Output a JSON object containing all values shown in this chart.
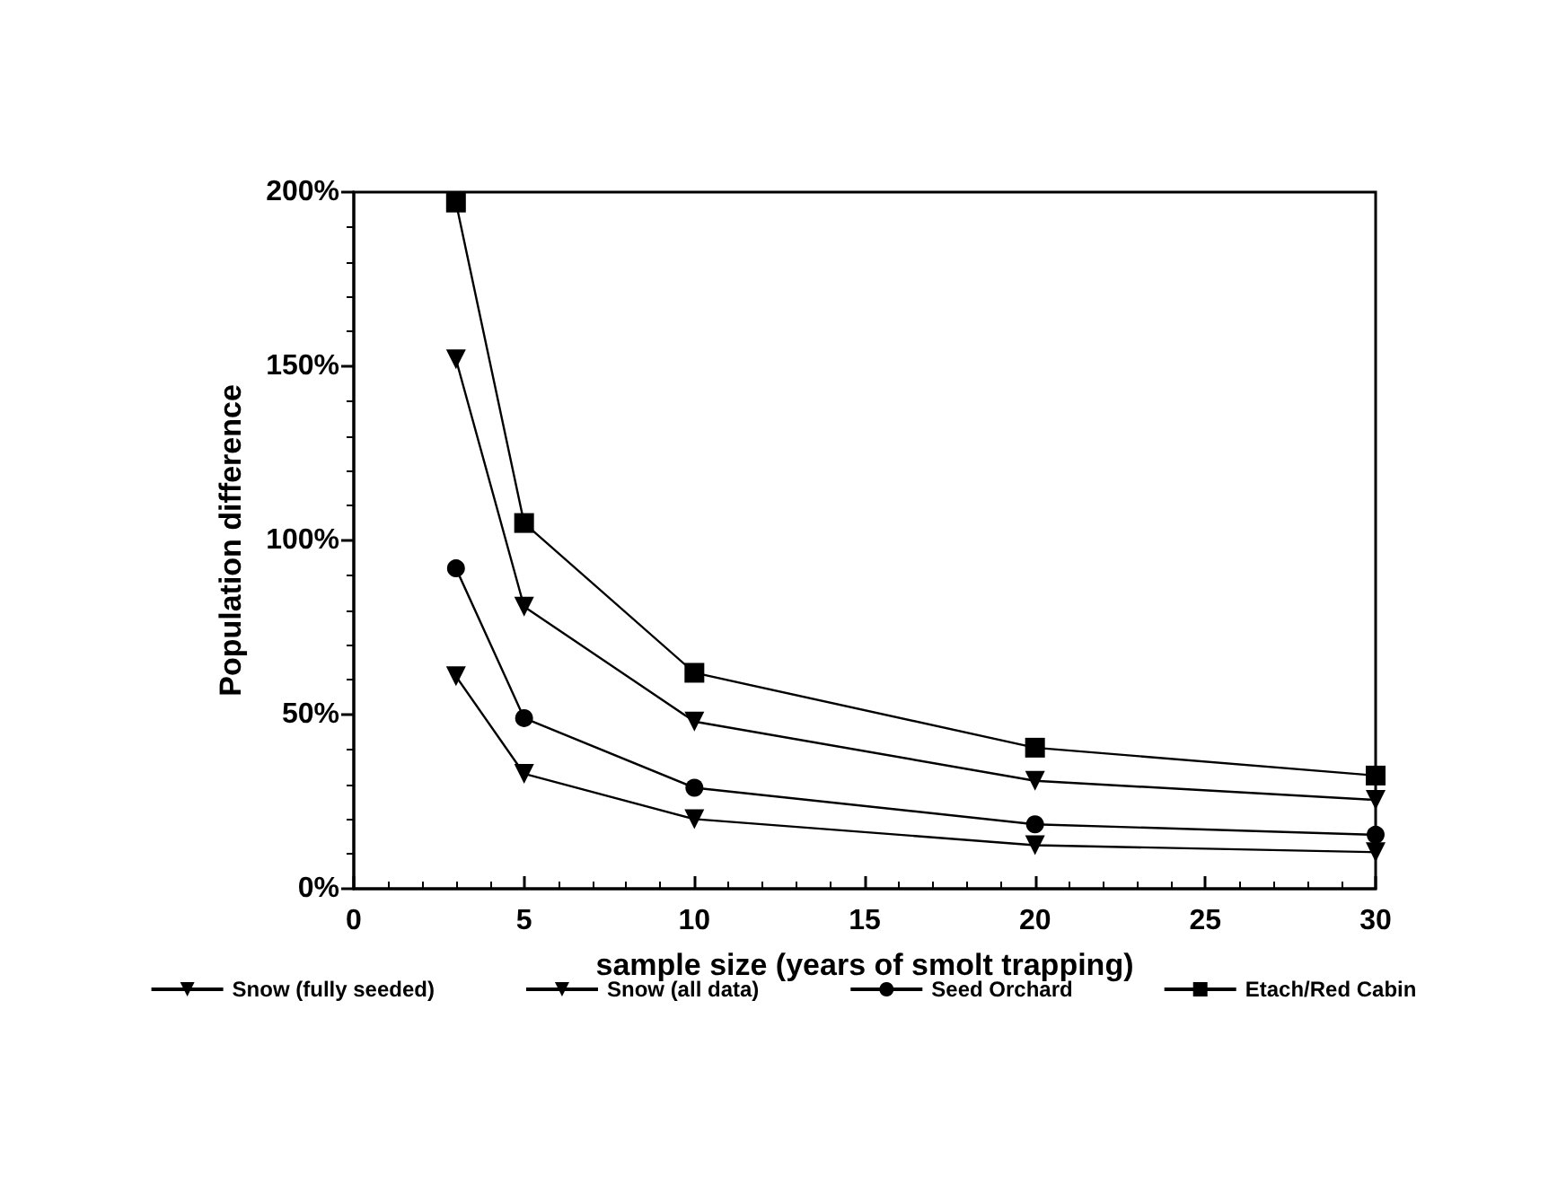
{
  "chart_data": {
    "type": "line",
    "xlabel": "sample size (years of smolt trapping)",
    "ylabel": "Population difference",
    "xlim": [
      0,
      30
    ],
    "xticks": [
      0,
      5,
      10,
      15,
      20,
      25,
      30
    ],
    "ylim": [
      0,
      200
    ],
    "yticks": [
      {
        "value": 0,
        "label": "0%"
      },
      {
        "value": 50,
        "label": "50%"
      },
      {
        "value": 100,
        "label": "100%"
      },
      {
        "value": 150,
        "label": "150%"
      },
      {
        "value": 200,
        "label": "200%"
      }
    ],
    "x": [
      3,
      5,
      10,
      20,
      30
    ],
    "grid": false,
    "legend": "bottom",
    "line_style": "solid",
    "series": [
      {
        "name": "Snow (fully seeded)",
        "color": "#000000",
        "marker": "triangle",
        "values": [
          61,
          33,
          20,
          12.5,
          10.5
        ]
      },
      {
        "name": "Snow (all data)",
        "color": "#000000",
        "marker": "triangle",
        "values": [
          152,
          81,
          48,
          31,
          25.5
        ]
      },
      {
        "name": "Seed Orchard",
        "color": "#000000",
        "marker": "circle",
        "values": [
          92,
          49,
          29,
          18.5,
          15.5
        ]
      },
      {
        "name": "Etach/Red Cabin",
        "color": "#000000",
        "marker": "square",
        "values": [
          197,
          105,
          62,
          40.5,
          32.5
        ]
      }
    ]
  }
}
